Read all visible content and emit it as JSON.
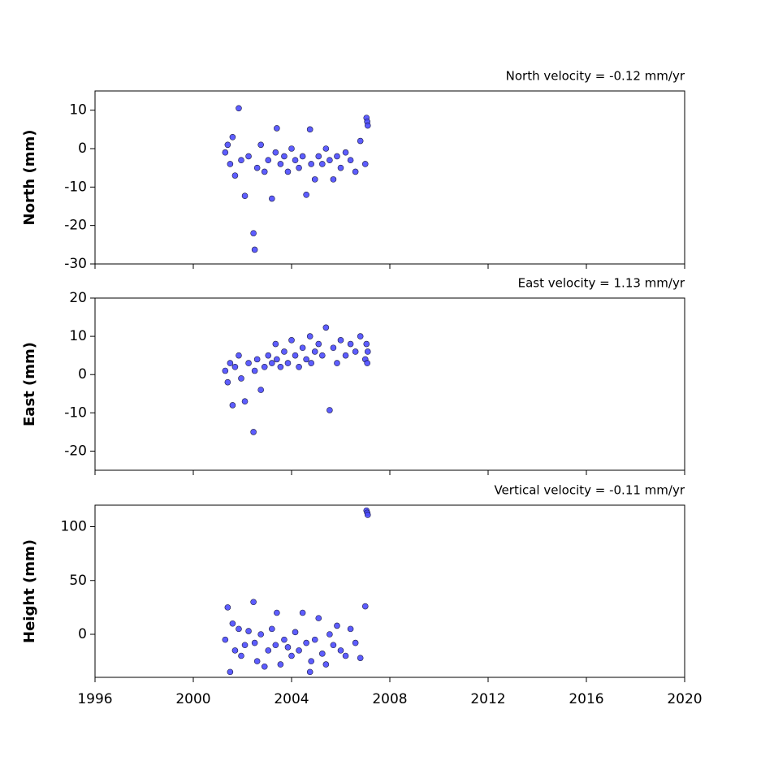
{
  "chart_data": [
    {
      "type": "scatter",
      "title": "North velocity = -0.12 mm/yr",
      "ylabel": "North (mm)",
      "color": "#4b4bff",
      "xlim": [
        1996,
        2020
      ],
      "xticks": [
        1996,
        2000,
        2004,
        2008,
        2012,
        2016,
        2020
      ],
      "ylim": [
        -30,
        15
      ],
      "yticks": [
        -30,
        -20,
        -10,
        0,
        10
      ],
      "x": [
        2001.3,
        2001.4,
        2001.5,
        2001.6,
        2001.7,
        2001.85,
        2001.95,
        2002.1,
        2002.25,
        2002.45,
        2002.5,
        2002.6,
        2002.75,
        2002.9,
        2003.05,
        2003.2,
        2003.35,
        2003.4,
        2003.55,
        2003.7,
        2003.85,
        2004.0,
        2004.15,
        2004.3,
        2004.45,
        2004.6,
        2004.75,
        2004.8,
        2004.95,
        2005.1,
        2005.25,
        2005.4,
        2005.55,
        2005.7,
        2005.85,
        2006.0,
        2006.2,
        2006.4,
        2006.6,
        2006.8,
        2007.0,
        2007.05,
        2007.08,
        2007.1
      ],
      "values": [
        -1,
        1,
        -4,
        3,
        -7,
        10.5,
        -3,
        -12.3,
        -2,
        -22,
        -26.3,
        -5,
        1,
        -6,
        -3,
        -13,
        -1,
        5.3,
        -4,
        -2,
        -6,
        0,
        -3,
        -5,
        -2,
        -12,
        5,
        -4,
        -8,
        -2,
        -4,
        0,
        -3,
        -8,
        -2,
        -5,
        -1,
        -3,
        -6,
        2,
        -4,
        8,
        7,
        6
      ]
    },
    {
      "type": "scatter",
      "title": "East velocity = 1.13 mm/yr",
      "ylabel": "East (mm)",
      "color": "#4b4bff",
      "xlim": [
        1996,
        2020
      ],
      "xticks": [
        1996,
        2000,
        2004,
        2008,
        2012,
        2016,
        2020
      ],
      "ylim": [
        -25,
        20
      ],
      "yticks": [
        -20,
        -10,
        0,
        10,
        20
      ],
      "x": [
        2001.3,
        2001.4,
        2001.5,
        2001.6,
        2001.7,
        2001.85,
        2001.95,
        2002.1,
        2002.25,
        2002.45,
        2002.5,
        2002.6,
        2002.75,
        2002.9,
        2003.05,
        2003.2,
        2003.35,
        2003.4,
        2003.55,
        2003.7,
        2003.85,
        2004.0,
        2004.15,
        2004.3,
        2004.45,
        2004.6,
        2004.75,
        2004.8,
        2004.95,
        2005.1,
        2005.25,
        2005.4,
        2005.55,
        2005.7,
        2005.85,
        2006.0,
        2006.2,
        2006.4,
        2006.6,
        2006.8,
        2007.0,
        2007.05,
        2007.08,
        2007.1
      ],
      "values": [
        1,
        -2,
        3,
        -8,
        2,
        5,
        -1,
        -7,
        3,
        -15,
        1,
        4,
        -4,
        2,
        5,
        3,
        8,
        4,
        2,
        6,
        3,
        9,
        5,
        2,
        7,
        4,
        10,
        3,
        6,
        8,
        5,
        12.3,
        -9.3,
        7,
        3,
        9,
        5,
        8,
        6,
        10,
        4,
        8,
        3,
        6
      ]
    },
    {
      "type": "scatter",
      "title": "Vertical velocity = -0.11 mm/yr",
      "ylabel": "Height (mm)",
      "color": "#4b4bff",
      "xlim": [
        1996,
        2020
      ],
      "xticks": [
        1996,
        2000,
        2004,
        2008,
        2012,
        2016,
        2020
      ],
      "ylim": [
        -40,
        120
      ],
      "yticks": [
        0,
        50,
        100
      ],
      "x": [
        2001.3,
        2001.4,
        2001.5,
        2001.6,
        2001.7,
        2001.85,
        2001.95,
        2002.1,
        2002.25,
        2002.45,
        2002.5,
        2002.6,
        2002.75,
        2002.9,
        2003.05,
        2003.2,
        2003.35,
        2003.4,
        2003.55,
        2003.7,
        2003.85,
        2004.0,
        2004.15,
        2004.3,
        2004.45,
        2004.6,
        2004.75,
        2004.8,
        2004.95,
        2005.1,
        2005.25,
        2005.4,
        2005.55,
        2005.7,
        2005.85,
        2006.0,
        2006.2,
        2006.4,
        2006.6,
        2006.8,
        2007.0,
        2007.05,
        2007.08,
        2007.1
      ],
      "values": [
        -5,
        25,
        -35,
        10,
        -15,
        5,
        -20,
        -10,
        3,
        30,
        -8,
        -25,
        0,
        -30,
        -15,
        5,
        -10,
        20,
        -28,
        -5,
        -12,
        -20,
        2,
        -15,
        20,
        -8,
        -35,
        -25,
        -5,
        15,
        -18,
        -28,
        0,
        -10,
        8,
        -15,
        -20,
        5,
        -8,
        -22,
        26,
        115,
        113,
        111
      ]
    }
  ]
}
